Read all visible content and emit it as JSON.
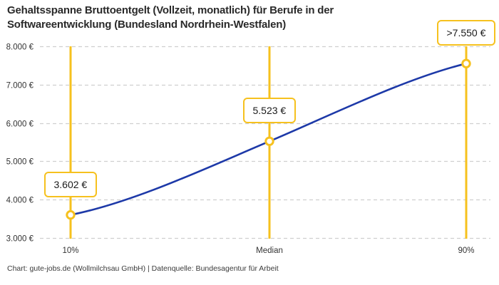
{
  "title": {
    "line1": "Gehaltsspanne Bruttoentgelt (Vollzeit, monatlich) für Berufe in der",
    "line2": "Softwareentwicklung (Bundesland Nordrhein-Westfalen)"
  },
  "footer": "Chart: gute-jobs.de (Wollmilchsau GmbH) | Datenquelle: Bundesagentur für Arbeit",
  "colors": {
    "accent_yellow": "#F6C11E",
    "line_blue": "#1D39A8",
    "grid_gray": "#CFCFCF",
    "title_text": "#2A2A2A",
    "tick_text": "#333333"
  },
  "chart_data": {
    "type": "line",
    "title": "Gehaltsspanne Bruttoentgelt (Vollzeit, monatlich) für Berufe in der Softwareentwicklung (Bundesland Nordrhein-Westfalen)",
    "categories": [
      "10%",
      "Median",
      "90%"
    ],
    "values": [
      3602,
      5523,
      7550
    ],
    "value_labels": [
      "3.602 €",
      "5.523 €",
      ">7.550 €"
    ],
    "ylim": [
      3000,
      8000
    ],
    "y_ticks": [
      {
        "value": 3000,
        "label": "3.000 €"
      },
      {
        "value": 4000,
        "label": "4.000 €"
      },
      {
        "value": 5000,
        "label": "5.000 €"
      },
      {
        "value": 6000,
        "label": "6.000 €"
      },
      {
        "value": 7000,
        "label": "7.000 €"
      },
      {
        "value": 8000,
        "label": "8.000 €"
      }
    ],
    "grid": "horizontal-dashed",
    "legend": "none",
    "marker_style": "open-circle",
    "source": "Chart: gute-jobs.de (Wollmilchsau GmbH) | Datenquelle: Bundesagentur für Arbeit"
  }
}
